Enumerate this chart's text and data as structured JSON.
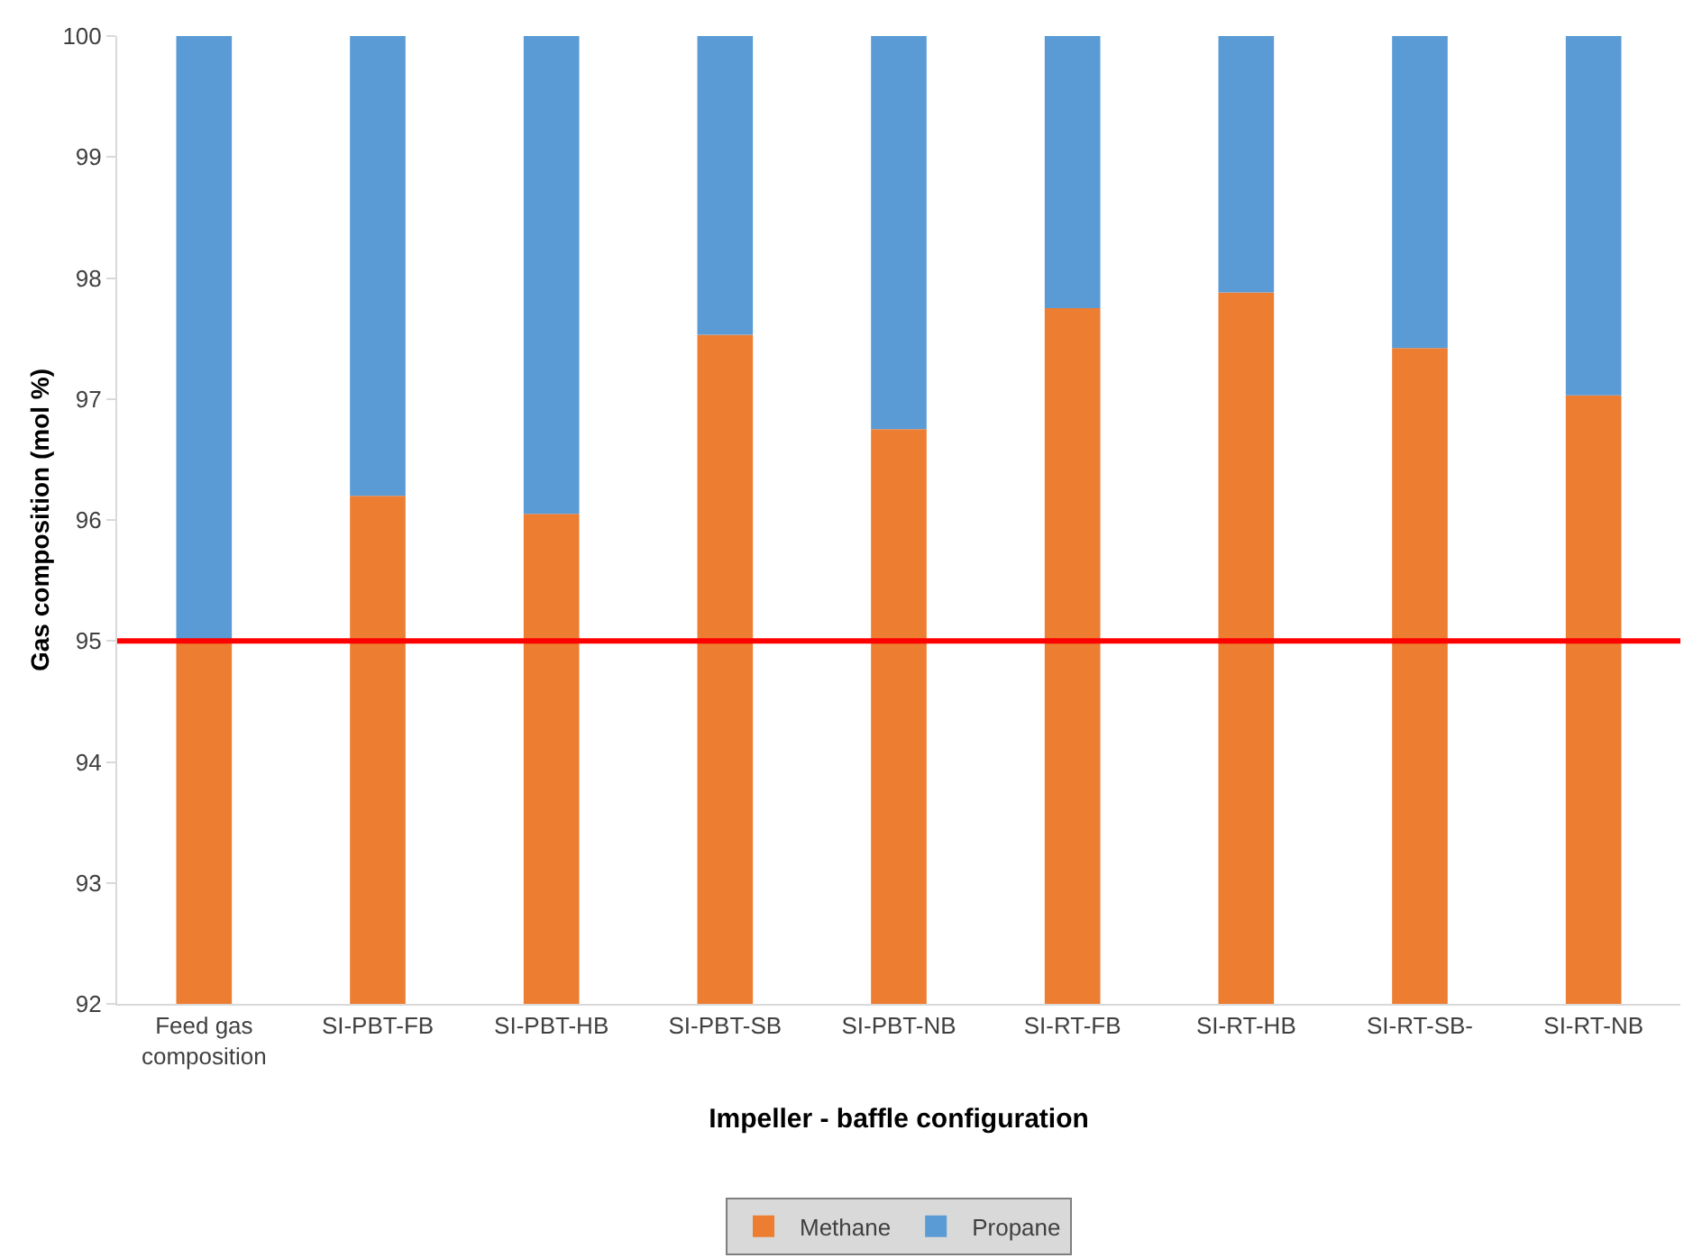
{
  "chart_data": {
    "type": "bar",
    "stacked": true,
    "xlabel": "Impeller - baffle configuration",
    "ylabel": "Gas composition (mol %)",
    "categories": [
      "Feed gas composition",
      "SI-PBT-FB",
      "SI-PBT-HB",
      "SI-PBT-SB",
      "SI-PBT-NB",
      "SI-RT-FB",
      "SI-RT-HB",
      "SI-RT-SB-",
      "SI-RT-NB"
    ],
    "series": [
      {
        "name": "Methane",
        "color": "#ed7d31",
        "values": [
          95.0,
          96.2,
          96.05,
          97.53,
          96.75,
          97.75,
          97.88,
          97.42,
          97.03
        ]
      },
      {
        "name": "Propane",
        "color": "#5b9bd5",
        "values": [
          5.0,
          3.8,
          3.95,
          2.47,
          3.25,
          2.25,
          2.12,
          2.58,
          2.97
        ],
        "base": [
          95.0,
          96.2,
          96.05,
          97.53,
          96.75,
          97.75,
          97.88,
          97.42,
          97.03
        ]
      }
    ],
    "ylim": [
      92,
      100
    ],
    "yticks": [
      92,
      93,
      94,
      95,
      96,
      97,
      98,
      99,
      100
    ],
    "grid": false,
    "legend": "bottom",
    "ref_lines": [
      {
        "axis": "y",
        "value": 95,
        "color": "#ff0000"
      }
    ]
  }
}
